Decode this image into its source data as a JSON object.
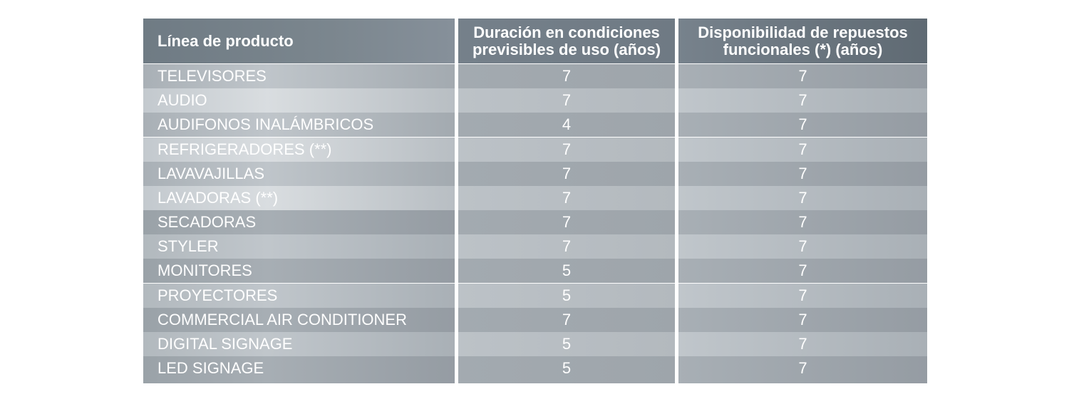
{
  "table": {
    "headers": {
      "product_line": "Línea de producto",
      "duration_line1": "Duración en condiciones",
      "duration_line2": "previsibles de uso (años)",
      "spare_line1": "Disponibilidad de repuestos",
      "spare_line2": "funcionales (*) (años)"
    },
    "rows": [
      {
        "product": "TELEVISORES",
        "duration": "7",
        "spares": "7"
      },
      {
        "product": "AUDIO",
        "duration": "7",
        "spares": "7"
      },
      {
        "product": "AUDIFONOS INALÁMBRICOS",
        "duration": "4",
        "spares": "7"
      },
      {
        "product": "REFRIGERADORES (**)",
        "duration": "7",
        "spares": "7"
      },
      {
        "product": "LAVAVAJILLAS",
        "duration": "7",
        "spares": "7"
      },
      {
        "product": "LAVADORAS (**)",
        "duration": "7",
        "spares": "7"
      },
      {
        "product": "SECADORAS",
        "duration": "7",
        "spares": "7"
      },
      {
        "product": "STYLER",
        "duration": "7",
        "spares": "7"
      },
      {
        "product": "MONITORES",
        "duration": "5",
        "spares": "7"
      },
      {
        "product": "PROYECTORES",
        "duration": "5",
        "spares": "7"
      },
      {
        "product": "COMMERCIAL AIR CONDITIONER",
        "duration": "7",
        "spares": "7"
      },
      {
        "product": "DIGITAL SIGNAGE",
        "duration": "5",
        "spares": "7"
      },
      {
        "product": "LED SIGNAGE",
        "duration": "5",
        "spares": "7"
      }
    ]
  }
}
